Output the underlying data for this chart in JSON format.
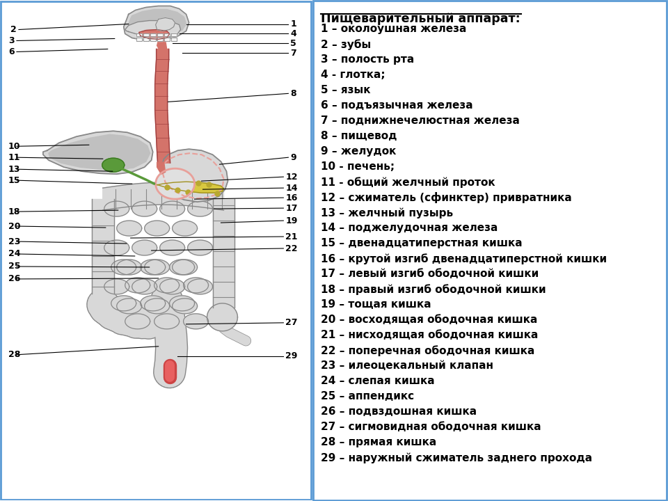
{
  "title": "Пищеварительный аппарат:",
  "legend_items": [
    "1 – околоушная железа",
    "2 – зубы",
    "3 – полость рта",
    "4 - глотка;",
    "5 – язык",
    "6 – подъязычная железа",
    "7 – поднижнечелюстная железа",
    "8 – пищевод",
    "9 – желудок",
    "10 - печень;",
    "11 - общий желчный проток",
    "12 – сжиматель (сфинктер) привратника",
    "13 – желчный пузырь",
    "14 – поджелудочная железа",
    "15 – двенадцатиперстная кишка",
    "16 – крутой изгиб двенадцатиперстной кишки",
    "17 – левый изгиб ободочной кишки",
    "18 – правый изгиб ободочной кишки",
    "19 – тощая кишка",
    "20 – восходящая ободочная кишка",
    "21 – нисходящая ободочная кишка",
    "22 – поперечная ободочная кишка",
    "23 – илеоцекальный клапан",
    "24 – слепая кишка",
    "25 – аппендикс",
    "26 – подвздошная кишка",
    "27 – сигмовидная ободочная кишка",
    "28 – прямая кишка",
    "29 – наружный сжиматель заднего прохода"
  ],
  "bg_color": "#ffffff",
  "border_color": "#5b9bd5",
  "title_fontsize": 12.5,
  "legend_fontsize": 11,
  "left_labels": [
    [
      2,
      15,
      678,
      185,
      686
    ],
    [
      3,
      12,
      662,
      165,
      665
    ],
    [
      6,
      12,
      646,
      155,
      650
    ],
    [
      10,
      12,
      510,
      128,
      512
    ],
    [
      11,
      12,
      494,
      148,
      492
    ],
    [
      13,
      12,
      477,
      162,
      474
    ],
    [
      15,
      12,
      461,
      190,
      456
    ],
    [
      18,
      12,
      416,
      170,
      418
    ],
    [
      20,
      12,
      395,
      152,
      393
    ],
    [
      23,
      12,
      373,
      182,
      370
    ],
    [
      24,
      12,
      355,
      194,
      352
    ],
    [
      25,
      12,
      337,
      215,
      336
    ],
    [
      26,
      12,
      319,
      228,
      320
    ],
    [
      28,
      12,
      210,
      228,
      222
    ]
  ],
  "right_labels": [
    [
      1,
      415,
      686,
      268,
      686
    ],
    [
      4,
      415,
      672,
      258,
      672
    ],
    [
      5,
      415,
      658,
      248,
      658
    ],
    [
      7,
      415,
      644,
      262,
      644
    ],
    [
      8,
      415,
      586,
      242,
      574
    ],
    [
      9,
      415,
      494,
      316,
      484
    ],
    [
      12,
      408,
      466,
      290,
      460
    ],
    [
      14,
      408,
      450,
      292,
      448
    ],
    [
      16,
      408,
      436,
      280,
      434
    ],
    [
      17,
      408,
      421,
      308,
      420
    ],
    [
      19,
      408,
      403,
      318,
      400
    ],
    [
      21,
      408,
      380,
      188,
      378
    ],
    [
      22,
      408,
      363,
      218,
      360
    ],
    [
      27,
      408,
      256,
      268,
      254
    ],
    [
      29,
      408,
      208,
      255,
      208
    ]
  ]
}
